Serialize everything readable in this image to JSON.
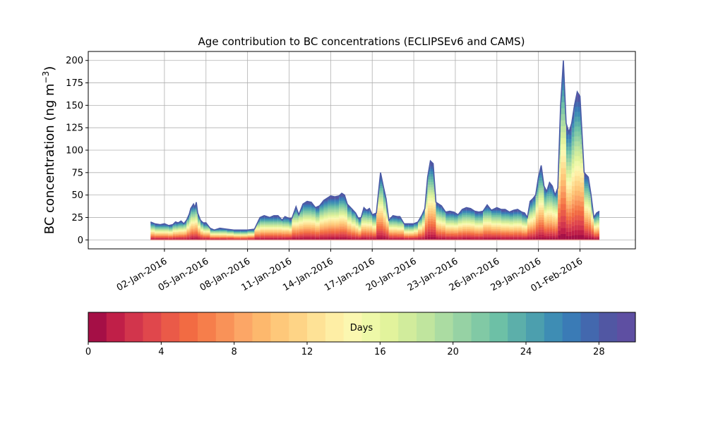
{
  "chart_data": {
    "type": "area",
    "title": "Age contribution to BC concentrations (ECLIPSEv6 and CAMS)",
    "xlabel": "",
    "ylabel": "BC concentration (ng m",
    "ylabel_sup": "−3",
    "ylabel_close": ")",
    "ylim": [
      -10,
      210
    ],
    "xlim": [
      -5.5,
      34.0
    ],
    "yticks": [
      0,
      25,
      50,
      75,
      100,
      125,
      150,
      175,
      200
    ],
    "xticks": [
      {
        "x": 0,
        "label": "02-Jan-2016"
      },
      {
        "x": 3,
        "label": "05-Jan-2016"
      },
      {
        "x": 6,
        "label": "08-Jan-2016"
      },
      {
        "x": 9,
        "label": "11-Jan-2016"
      },
      {
        "x": 12,
        "label": "14-Jan-2016"
      },
      {
        "x": 15,
        "label": "17-Jan-2016"
      },
      {
        "x": 18,
        "label": "20-Jan-2016"
      },
      {
        "x": 21,
        "label": "23-Jan-2016"
      },
      {
        "x": 24,
        "label": "26-Jan-2016"
      },
      {
        "x": 27,
        "label": "29-Jan-2016"
      },
      {
        "x": 30,
        "label": "01-Feb-2016"
      }
    ],
    "grid": true,
    "x_units": "days since 02-Jan-2016",
    "total": {
      "x": [
        -1.0,
        -0.7,
        -0.3,
        0.0,
        0.3,
        0.6,
        0.8,
        1.0,
        1.2,
        1.4,
        1.6,
        1.8,
        1.9,
        2.1,
        2.2,
        2.3,
        2.4,
        2.6,
        2.8,
        3.0,
        3.3,
        3.6,
        4.0,
        4.5,
        5.0,
        5.5,
        6.0,
        6.5,
        6.9,
        7.2,
        7.6,
        7.9,
        8.2,
        8.5,
        8.7,
        9.0,
        9.2,
        9.5,
        9.7,
        10.0,
        10.3,
        10.6,
        10.9,
        11.2,
        11.5,
        11.8,
        12.0,
        12.3,
        12.6,
        12.8,
        13.0,
        13.2,
        13.5,
        13.8,
        14.0,
        14.2,
        14.4,
        14.6,
        14.8,
        15.0,
        15.3,
        15.6,
        15.8,
        16.0,
        16.2,
        16.5,
        16.8,
        17.0,
        17.3,
        17.6,
        18.0,
        18.3,
        18.6,
        18.8,
        19.0,
        19.2,
        19.4,
        19.6,
        19.8,
        20.0,
        20.3,
        20.6,
        20.9,
        21.2,
        21.5,
        21.8,
        22.1,
        22.4,
        22.7,
        23.0,
        23.3,
        23.6,
        24.0,
        24.3,
        24.6,
        24.9,
        25.2,
        25.5,
        25.8,
        26.0,
        26.2,
        26.4,
        26.6,
        26.8,
        27.0,
        27.2,
        27.4,
        27.6,
        27.8,
        28.0,
        28.2,
        28.4,
        28.6,
        28.8,
        29.0,
        29.2,
        29.4,
        29.6,
        29.8,
        30.0,
        30.3,
        30.6,
        30.8,
        31.0,
        31.2,
        31.4
      ],
      "y": [
        20,
        18,
        17,
        18,
        16,
        17,
        20,
        19,
        21,
        18,
        22,
        29,
        35,
        40,
        36,
        42,
        30,
        22,
        19,
        19,
        13,
        11,
        13,
        12,
        11,
        11,
        11,
        12,
        25,
        27,
        25,
        27,
        27,
        22,
        26,
        24,
        24,
        37,
        28,
        40,
        43,
        42,
        36,
        38,
        44,
        47,
        49,
        48,
        49,
        52,
        50,
        40,
        35,
        30,
        24,
        25,
        36,
        33,
        35,
        28,
        30,
        75,
        60,
        46,
        22,
        27,
        26,
        26,
        18,
        18,
        18,
        20,
        28,
        35,
        70,
        88,
        85,
        42,
        40,
        38,
        31,
        32,
        31,
        28,
        34,
        36,
        35,
        32,
        31,
        32,
        39,
        33,
        36,
        34,
        34,
        31,
        33,
        34,
        31,
        30,
        25,
        43,
        46,
        50,
        70,
        83,
        60,
        54,
        64,
        60,
        50,
        58,
        150,
        200,
        130,
        120,
        130,
        150,
        165,
        160,
        75,
        70,
        50,
        25,
        30,
        32
      ],
      "threshold_day": [
        14,
        14,
        14,
        14,
        14,
        14,
        14,
        14,
        14,
        14,
        14,
        14,
        14,
        14,
        14,
        14,
        14,
        14,
        14,
        14,
        14,
        14,
        14,
        14,
        14,
        14,
        14,
        14,
        14,
        14,
        14,
        14,
        14,
        14,
        14,
        14,
        14,
        13,
        13,
        13,
        13,
        13,
        13,
        13,
        13,
        12,
        12,
        12,
        12,
        12,
        12,
        13,
        13,
        14,
        14,
        14,
        14,
        14,
        14,
        12,
        11,
        6,
        8,
        10,
        14,
        14,
        14,
        14,
        14,
        14,
        14,
        14,
        14,
        14,
        14,
        14,
        14,
        14,
        14,
        14,
        14,
        14,
        14,
        14,
        14,
        14,
        14,
        14,
        14,
        14,
        14,
        14,
        14,
        14,
        14,
        14,
        14,
        14,
        14,
        14,
        14,
        6,
        6,
        8,
        10,
        10,
        10,
        10,
        10,
        10,
        14,
        14,
        8,
        6,
        6,
        6,
        6,
        6,
        10,
        10,
        14,
        14,
        14,
        14,
        14,
        14
      ]
    },
    "colorbar": {
      "label": "Days",
      "range": [
        0,
        30
      ],
      "ticks": [
        0,
        4,
        8,
        12,
        16,
        20,
        24,
        28
      ],
      "colors": [
        "#a50f46",
        "#c01f48",
        "#d2354c",
        "#e0474c",
        "#ea5a48",
        "#f26b43",
        "#f67e4b",
        "#f99258",
        "#fca666",
        "#fdb86d",
        "#fec87a",
        "#fed486",
        "#fee296",
        "#feeea5",
        "#fbf7b0",
        "#eef8a8",
        "#e2f39c",
        "#d1ec9c",
        "#c0e59e",
        "#abdca2",
        "#96d2a4",
        "#81c9a5",
        "#6dc0a6",
        "#5cafaa",
        "#4c9fae",
        "#3e8db4",
        "#3a7bb6",
        "#4368ae",
        "#5157a3",
        "#5e4fa2"
      ]
    }
  }
}
